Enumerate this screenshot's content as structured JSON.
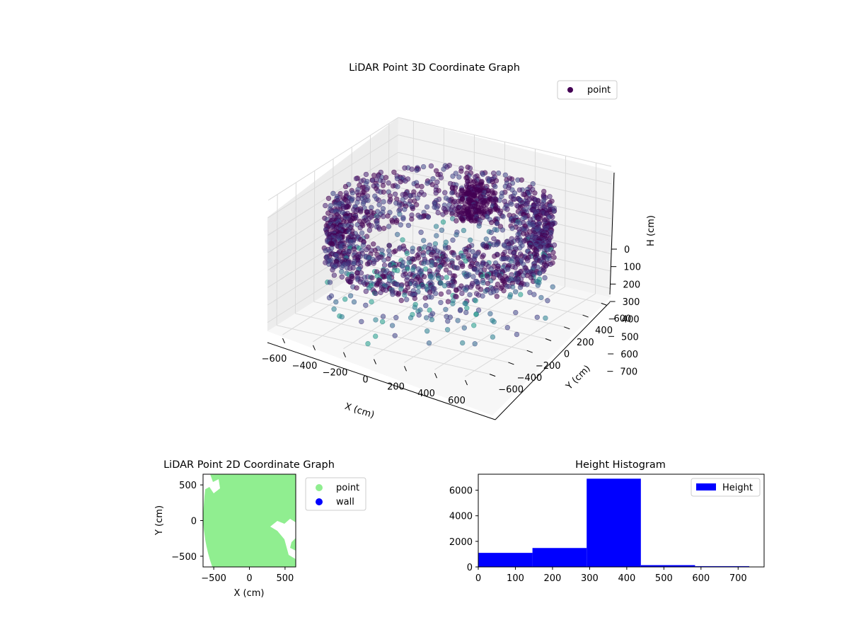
{
  "chart_data": [
    {
      "type": "scatter",
      "projection": "3d",
      "title": "LiDAR Point 3D Coordinate Graph",
      "xlabel": "X (cm)",
      "ylabel": "Y (cm)",
      "zlabel": "H (cm)",
      "xlim": [
        -700,
        700
      ],
      "ylim": [
        -700,
        700
      ],
      "zlim": [
        0,
        750
      ],
      "z_axis_inverted": true,
      "xticks": [
        "−600",
        "−400",
        "−200",
        "0",
        "200",
        "400",
        "600"
      ],
      "yticks": [
        "−600",
        "−400",
        "−200",
        "0",
        "200",
        "400",
        "600"
      ],
      "zticks": [
        "0",
        "100",
        "200",
        "300",
        "400",
        "500",
        "600",
        "700"
      ],
      "colormap": "viridis",
      "legend": {
        "entries": [
          "point"
        ],
        "position": "upper-right"
      },
      "grid": true,
      "description": "Dense ring of points (radius ~550–650 cm) at heights ~150–450 cm with scattered points across the floor region"
    },
    {
      "type": "scatter",
      "title": "LiDAR Point 2D Coordinate Graph",
      "xlabel": "X (cm)",
      "ylabel": "Y (cm)",
      "xlim": [
        -650,
        650
      ],
      "ylim": [
        -650,
        650
      ],
      "xticks": [
        "−500",
        "0",
        "500"
      ],
      "yticks": [
        "−500",
        "0",
        "500"
      ],
      "series": [
        {
          "name": "point",
          "color": "#90ee90"
        },
        {
          "name": "wall",
          "color": "#0000ff"
        }
      ],
      "legend": {
        "position": "outside-right"
      },
      "description": "Filled green disk of points covering roughly radius 650 cm"
    },
    {
      "type": "bar",
      "title": "Height Histogram",
      "legend": {
        "entries": [
          "Height"
        ],
        "position": "upper-right"
      },
      "series": [
        {
          "name": "Height",
          "color": "#0000ff"
        }
      ],
      "bins": [
        {
          "x0": 0,
          "x1": 146,
          "count": 1100
        },
        {
          "x0": 146,
          "x1": 292,
          "count": 1480
        },
        {
          "x0": 292,
          "x1": 438,
          "count": 6900
        },
        {
          "x0": 438,
          "x1": 584,
          "count": 140
        },
        {
          "x0": 584,
          "x1": 730,
          "count": 60
        }
      ],
      "xlim": [
        0,
        770
      ],
      "ylim": [
        0,
        7250
      ],
      "xticks": [
        "0",
        "100",
        "200",
        "300",
        "400",
        "500",
        "600",
        "700"
      ],
      "yticks": [
        "0",
        "2000",
        "4000",
        "6000"
      ]
    }
  ]
}
